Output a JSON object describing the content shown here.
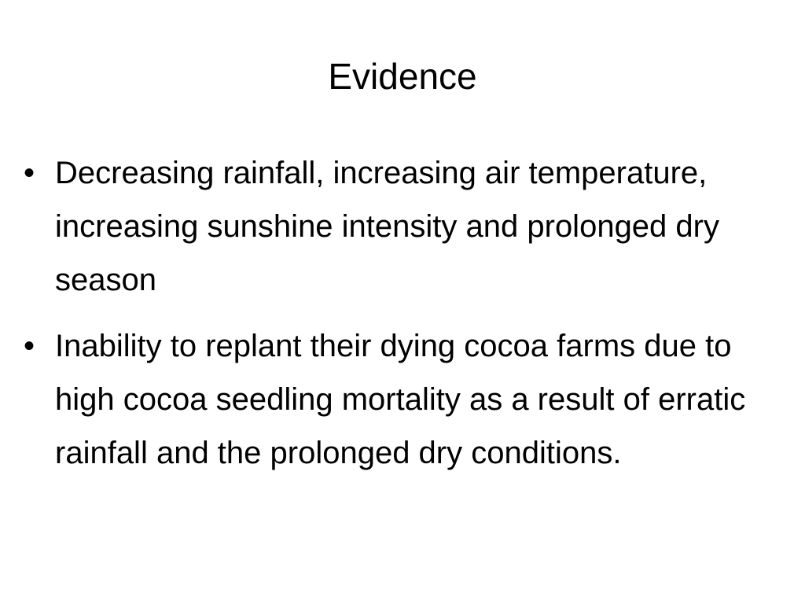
{
  "title": "Evidence",
  "bullets": [
    "Decreasing rainfall, increasing air temperature, increasing sunshine intensity and prolonged dry season",
    "Inability to replant their dying cocoa farms due to high cocoa seedling mortality as a result of erratic rainfall and the prolonged dry conditions."
  ]
}
